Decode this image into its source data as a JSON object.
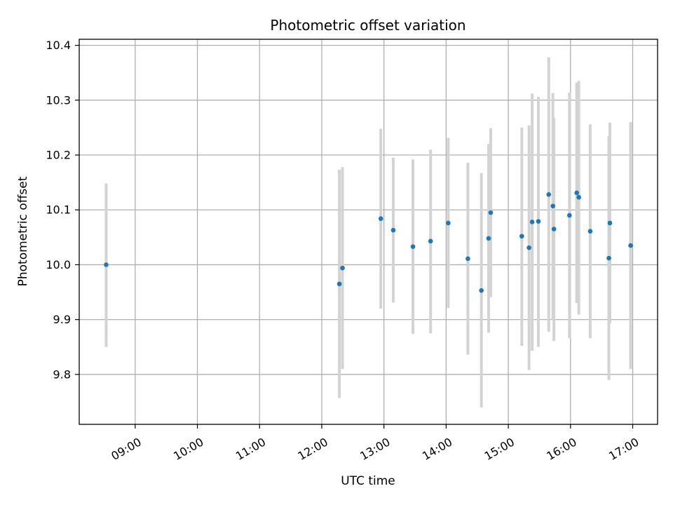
{
  "chart_data": {
    "type": "scatter",
    "title": "Photometric offset variation",
    "xlabel": "UTC time",
    "ylabel": "Photometric offset",
    "x_unit": "hours UTC",
    "xlim": [
      8.1,
      17.4
    ],
    "ylim": [
      9.709,
      10.411
    ],
    "x_ticks": [
      {
        "value": 9,
        "label": "09:00"
      },
      {
        "value": 10,
        "label": "10:00"
      },
      {
        "value": 11,
        "label": "11:00"
      },
      {
        "value": 12,
        "label": "12:00"
      },
      {
        "value": 13,
        "label": "13:00"
      },
      {
        "value": 14,
        "label": "14:00"
      },
      {
        "value": 15,
        "label": "15:00"
      },
      {
        "value": 16,
        "label": "16:00"
      },
      {
        "value": 17,
        "label": "17:00"
      }
    ],
    "y_ticks": [
      {
        "value": 9.8,
        "label": "9.8"
      },
      {
        "value": 9.9,
        "label": "9.9"
      },
      {
        "value": 10.0,
        "label": "10.0"
      },
      {
        "value": 10.1,
        "label": "10.1"
      },
      {
        "value": 10.2,
        "label": "10.2"
      },
      {
        "value": 10.3,
        "label": "10.3"
      },
      {
        "value": 10.4,
        "label": "10.4"
      }
    ],
    "grid": true,
    "point_color": "#1f77b4",
    "errorbar_color": "#d3d3d3",
    "points": [
      {
        "time": "08:32",
        "y": 10.0,
        "err_low": 9.85,
        "err_high": 10.148
      },
      {
        "time": "12:17",
        "y": 9.965,
        "err_low": 9.757,
        "err_high": 10.173
      },
      {
        "time": "12:20",
        "y": 9.994,
        "err_low": 9.81,
        "err_high": 10.178
      },
      {
        "time": "12:57",
        "y": 10.084,
        "err_low": 9.92,
        "err_high": 10.248
      },
      {
        "time": "13:09",
        "y": 10.063,
        "err_low": 9.931,
        "err_high": 10.195
      },
      {
        "time": "13:28",
        "y": 10.033,
        "err_low": 9.874,
        "err_high": 10.192
      },
      {
        "time": "13:45",
        "y": 10.043,
        "err_low": 9.875,
        "err_high": 10.21
      },
      {
        "time": "14:02",
        "y": 10.076,
        "err_low": 9.921,
        "err_high": 10.231
      },
      {
        "time": "14:21",
        "y": 10.011,
        "err_low": 9.836,
        "err_high": 10.186
      },
      {
        "time": "14:34",
        "y": 9.953,
        "err_low": 9.74,
        "err_high": 10.167
      },
      {
        "time": "14:41",
        "y": 10.048,
        "err_low": 9.876,
        "err_high": 10.22
      },
      {
        "time": "14:43",
        "y": 10.095,
        "err_low": 9.941,
        "err_high": 10.249
      },
      {
        "time": "15:13",
        "y": 10.052,
        "err_low": 9.852,
        "err_high": 10.25
      },
      {
        "time": "15:20",
        "y": 10.031,
        "err_low": 9.808,
        "err_high": 10.254
      },
      {
        "time": "15:23",
        "y": 10.078,
        "err_low": 9.843,
        "err_high": 10.312
      },
      {
        "time": "15:29",
        "y": 10.079,
        "err_low": 9.85,
        "err_high": 10.306
      },
      {
        "time": "15:39",
        "y": 10.128,
        "err_low": 9.878,
        "err_high": 10.378
      },
      {
        "time": "15:43",
        "y": 10.107,
        "err_low": 9.9,
        "err_high": 10.313
      },
      {
        "time": "15:44",
        "y": 10.065,
        "err_low": 9.861,
        "err_high": 10.268
      },
      {
        "time": "15:59",
        "y": 10.09,
        "err_low": 9.866,
        "err_high": 10.314
      },
      {
        "time": "16:06",
        "y": 10.131,
        "err_low": 9.93,
        "err_high": 10.332
      },
      {
        "time": "16:08",
        "y": 10.123,
        "err_low": 9.909,
        "err_high": 10.335
      },
      {
        "time": "16:19",
        "y": 10.061,
        "err_low": 9.866,
        "err_high": 10.256
      },
      {
        "time": "16:37",
        "y": 10.012,
        "err_low": 9.79,
        "err_high": 10.234
      },
      {
        "time": "16:38",
        "y": 10.076,
        "err_low": 9.893,
        "err_high": 10.259
      },
      {
        "time": "16:58",
        "y": 10.035,
        "err_low": 9.81,
        "err_high": 10.26
      }
    ]
  }
}
